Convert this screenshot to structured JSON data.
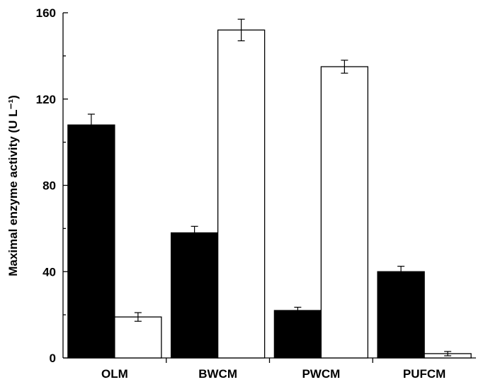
{
  "chart_data": {
    "type": "bar",
    "title": "",
    "xlabel": "",
    "ylabel": "Maximal enzyme activity (U L⁻¹)",
    "ylim": [
      0,
      160
    ],
    "yticks": [
      0,
      40,
      80,
      120,
      160
    ],
    "categories": [
      "OLM",
      "BWCM",
      "PWCM",
      "PUFCM"
    ],
    "series": [
      {
        "color": "#000000",
        "values": [
          108,
          58,
          22,
          40
        ],
        "errors": [
          5,
          3,
          1.5,
          2.5
        ]
      },
      {
        "color": "#ffffff",
        "values": [
          19,
          152,
          135,
          2
        ],
        "errors": [
          2,
          5,
          3,
          1
        ]
      }
    ],
    "grid": false,
    "legend": "none"
  }
}
